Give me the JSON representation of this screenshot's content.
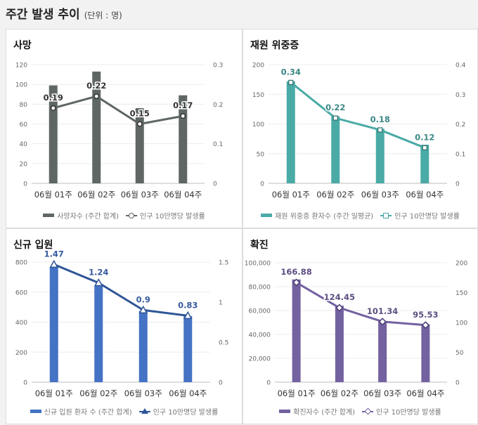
{
  "header": {
    "title": "주간 발생 추이",
    "unit": "(단위 : 명)"
  },
  "chart_data": [
    {
      "id": "deaths",
      "type": "bar",
      "title": "사망",
      "categories": [
        "06월 01주",
        "06월 02주",
        "06월 03주",
        "06월 04주"
      ],
      "color": "#5f6764",
      "yaxis_left": {
        "min": 0,
        "max": 120,
        "ticks": [
          "0",
          "20",
          "40",
          "60",
          "80",
          "100",
          "120"
        ]
      },
      "yaxis_right": {
        "min": 0,
        "max": 0.3,
        "ticks": [
          "0",
          "0.1",
          "0.2",
          "0.3"
        ]
      },
      "series": [
        {
          "name": "사망자수 (주간 합계)",
          "kind": "bar",
          "axis": "left",
          "values": [
            99,
            113,
            76,
            89
          ]
        },
        {
          "name": "인구 10만명당 발생률",
          "kind": "line",
          "axis": "right",
          "marker": "circle",
          "values": [
            0.19,
            0.22,
            0.15,
            0.17
          ],
          "labels": [
            "0.19",
            "0.22",
            "0.15",
            "0.17"
          ]
        }
      ],
      "legend": [
        "사망자수 (주간 합계)",
        "인구 10만명당 발생률"
      ]
    },
    {
      "id": "severe",
      "type": "bar",
      "title": "재원 위중증",
      "categories": [
        "06월 01주",
        "06월 02주",
        "06월 03주",
        "06월 04주"
      ],
      "color": "#4aaaa6",
      "yaxis_left": {
        "min": 0,
        "max": 200,
        "ticks": [
          "0",
          "50",
          "100",
          "150",
          "200"
        ]
      },
      "yaxis_right": {
        "min": 0,
        "max": 0.4,
        "ticks": [
          "0",
          "0.1",
          "0.2",
          "0.3",
          "0.4"
        ]
      },
      "series": [
        {
          "name": "재원 위중증 환자수 (주간 일평균)",
          "kind": "bar",
          "axis": "left",
          "values": [
            172,
            113,
            92,
            65
          ]
        },
        {
          "name": "인구 10만명당 발생률",
          "kind": "line",
          "axis": "right",
          "marker": "square",
          "values": [
            0.34,
            0.22,
            0.18,
            0.12
          ],
          "labels": [
            "0.34",
            "0.22",
            "0.18",
            "0.12"
          ]
        }
      ],
      "legend": [
        "재원 위중증 환자수 (주간 일평균)",
        "인구 10만명당 발생률"
      ]
    },
    {
      "id": "admissions",
      "type": "bar",
      "title": "신규 입원",
      "categories": [
        "06월 01주",
        "06월 02주",
        "06월 03주",
        "06월 04주"
      ],
      "color": "#4472c4",
      "yaxis_left": {
        "min": 0,
        "max": 800,
        "ticks": [
          "0",
          "200",
          "400",
          "600",
          "800"
        ]
      },
      "yaxis_right": {
        "min": 0,
        "max": 1.5,
        "ticks": [
          "0",
          "0.5",
          "1",
          "1.5"
        ]
      },
      "series": [
        {
          "name": "신규 입원 환자 수 (주간 합계)",
          "kind": "bar",
          "axis": "left",
          "values": [
            765,
            640,
            475,
            440
          ]
        },
        {
          "name": "인구 10만명당 발생률",
          "kind": "line",
          "axis": "right",
          "marker": "triangle",
          "values": [
            1.47,
            1.24,
            0.9,
            0.83
          ],
          "labels": [
            "1.47",
            "1.24",
            "0.9",
            "0.83"
          ]
        }
      ],
      "legend": [
        "신규 입원 환자 수 (주간 합계)",
        "인구 10만명당 발생률"
      ]
    },
    {
      "id": "confirmed",
      "type": "bar",
      "title": "확진",
      "categories": [
        "06월 01주",
        "06월 02주",
        "06월 03주",
        "06월 04주"
      ],
      "color": "#7361a0",
      "yaxis_left": {
        "min": 0,
        "max": 100000,
        "ticks": [
          "0",
          "20,000",
          "40,000",
          "60,000",
          "80,000",
          "100,000"
        ]
      },
      "yaxis_right": {
        "min": 0,
        "max": 200,
        "ticks": [
          "0",
          "50",
          "100",
          "150",
          "200"
        ]
      },
      "series": [
        {
          "name": "확진자수 (주간 합계)",
          "kind": "bar",
          "axis": "left",
          "values": [
            86000,
            64000,
            51000,
            48500
          ]
        },
        {
          "name": "인구 10만명당 발생률",
          "kind": "line",
          "axis": "right",
          "marker": "diamond",
          "values": [
            166.88,
            124.45,
            101.34,
            95.53
          ],
          "labels": [
            "166.88",
            "124.45",
            "101.34",
            "95.53"
          ]
        }
      ],
      "legend": [
        "확진자수 (주간 합계)",
        "인구 10만명당 발생률"
      ]
    }
  ]
}
